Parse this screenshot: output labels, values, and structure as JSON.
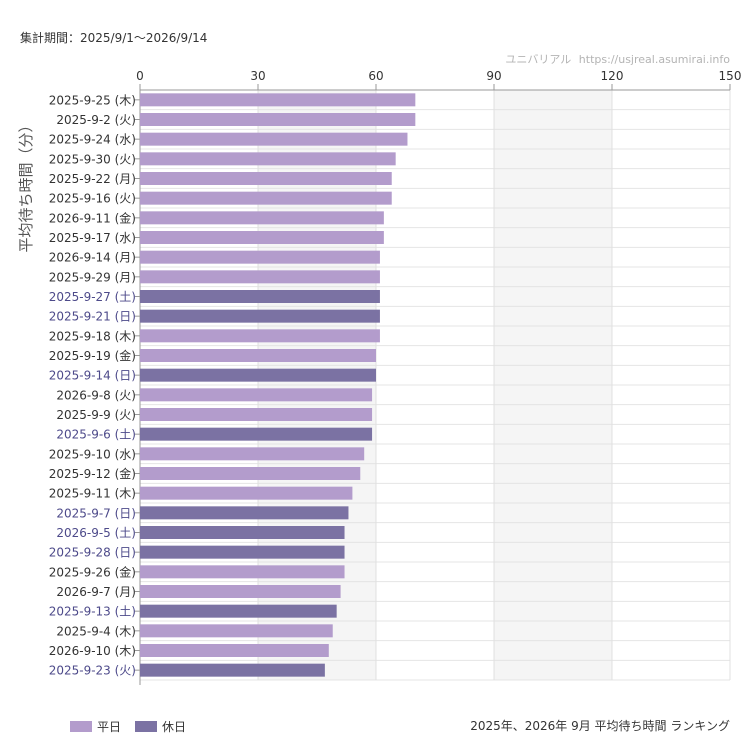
{
  "header": {
    "period": "集計期間：2025/9/1～2026/9/14",
    "site_name": "ユニバリアル",
    "site_url": "https://usjreal.asumirai.info"
  },
  "legend": {
    "weekday_label": "平日",
    "holiday_label": "休日"
  },
  "caption": "2025年、2026年 9月 平均待ち時間 ランキング",
  "colors": {
    "weekday": "#b39ccc",
    "holiday": "#7b72a3",
    "holiday_text": "#4d4a8a",
    "label_text": "#333333"
  },
  "chart_data": {
    "type": "bar",
    "orientation": "horizontal",
    "ylabel": "平均待ち時間（分）",
    "xlim": [
      0,
      150
    ],
    "xticks": [
      0,
      30,
      60,
      90,
      120,
      150
    ],
    "shaded_bands": [
      [
        30,
        60
      ],
      [
        90,
        120
      ]
    ],
    "grid": true,
    "legend_position": "bottom-left",
    "categories": [
      "2025-9-25 (木)",
      "2025-9-2 (火)",
      "2025-9-24 (水)",
      "2025-9-30 (火)",
      "2025-9-22 (月)",
      "2025-9-16 (火)",
      "2026-9-11 (金)",
      "2025-9-17 (水)",
      "2026-9-14 (月)",
      "2025-9-29 (月)",
      "2025-9-27 (土)",
      "2025-9-21 (日)",
      "2025-9-18 (木)",
      "2025-9-19 (金)",
      "2025-9-14 (日)",
      "2026-9-8 (火)",
      "2025-9-9 (火)",
      "2025-9-6 (土)",
      "2025-9-10 (水)",
      "2025-9-12 (金)",
      "2025-9-11 (木)",
      "2025-9-7 (日)",
      "2026-9-5 (土)",
      "2025-9-28 (日)",
      "2025-9-26 (金)",
      "2026-9-7 (月)",
      "2025-9-13 (土)",
      "2025-9-4 (木)",
      "2026-9-10 (木)",
      "2025-9-23 (火)"
    ],
    "values": [
      70,
      70,
      68,
      65,
      64,
      64,
      62,
      62,
      61,
      61,
      61,
      61,
      61,
      60,
      60,
      59,
      59,
      59,
      57,
      56,
      54,
      53,
      52,
      52,
      52,
      51,
      50,
      49,
      48,
      47
    ],
    "day_type": [
      "weekday",
      "weekday",
      "weekday",
      "weekday",
      "weekday",
      "weekday",
      "weekday",
      "weekday",
      "weekday",
      "weekday",
      "holiday",
      "holiday",
      "weekday",
      "weekday",
      "holiday",
      "weekday",
      "weekday",
      "holiday",
      "weekday",
      "weekday",
      "weekday",
      "holiday",
      "holiday",
      "holiday",
      "weekday",
      "weekday",
      "holiday",
      "weekday",
      "weekday",
      "holiday"
    ]
  }
}
